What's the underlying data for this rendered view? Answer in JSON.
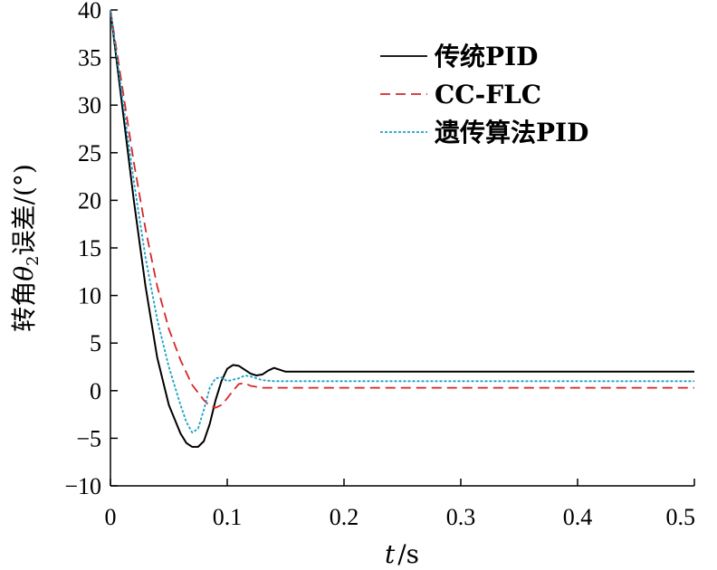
{
  "chart_data": {
    "type": "line",
    "title": "",
    "xlabel_var": "t",
    "xlabel_unit": "/s",
    "ylabel_pre": "转角",
    "ylabel_var": "θ",
    "ylabel_sub": "2",
    "ylabel_post": "误差/(°)",
    "xlim": [
      0,
      0.5
    ],
    "ylim": [
      -10,
      40
    ],
    "x_ticks": [
      0,
      0.1,
      0.2,
      0.3,
      0.4,
      0.5
    ],
    "x_tick_labels": [
      "0",
      "0.1",
      "0.2",
      "0.3",
      "0.4",
      "0.5"
    ],
    "y_ticks": [
      -10,
      -5,
      0,
      5,
      10,
      15,
      20,
      25,
      30,
      35,
      40
    ],
    "y_tick_labels": [
      "−10",
      "−5",
      "0",
      "5",
      "10",
      "15",
      "20",
      "25",
      "30",
      "35",
      "40"
    ],
    "grid": false,
    "legend_position": "top-right",
    "series": [
      {
        "name": "传统PID",
        "color": "#000000",
        "dash": "solid",
        "x": [
          0,
          0.01,
          0.02,
          0.03,
          0.04,
          0.05,
          0.06,
          0.065,
          0.07,
          0.075,
          0.08,
          0.085,
          0.09,
          0.095,
          0.1,
          0.105,
          0.11,
          0.115,
          0.12,
          0.125,
          0.13,
          0.135,
          0.14,
          0.145,
          0.15,
          0.155,
          0.16,
          0.2,
          0.3,
          0.4,
          0.5
        ],
        "y": [
          40,
          30,
          20,
          11,
          3.5,
          -1.5,
          -4.5,
          -5.5,
          -5.9,
          -5.9,
          -5.3,
          -3.5,
          -1,
          1,
          2.3,
          2.7,
          2.6,
          2.2,
          1.8,
          1.6,
          1.7,
          2.1,
          2.4,
          2.2,
          2.0,
          2.0,
          2.0,
          2.0,
          2.0,
          2.0,
          2.0
        ]
      },
      {
        "name": "CC-FLC",
        "color": "#d62728",
        "dash": "dashed",
        "x": [
          0,
          0.01,
          0.02,
          0.03,
          0.04,
          0.05,
          0.06,
          0.07,
          0.08,
          0.085,
          0.09,
          0.095,
          0.1,
          0.105,
          0.11,
          0.115,
          0.12,
          0.13,
          0.2,
          0.3,
          0.35,
          0.4,
          0.5
        ],
        "y": [
          40,
          32,
          24,
          17,
          11,
          6.5,
          3.2,
          0.6,
          -1.0,
          -1.6,
          -1.8,
          -1.5,
          -0.8,
          0.0,
          0.7,
          0.8,
          0.5,
          0.3,
          0.3,
          0.3,
          0.3,
          0.3,
          0.3
        ]
      },
      {
        "name": "遗传算法PID",
        "color": "#17a2c8",
        "dash": "dotted",
        "x": [
          0,
          0.01,
          0.02,
          0.03,
          0.04,
          0.05,
          0.06,
          0.065,
          0.07,
          0.075,
          0.08,
          0.085,
          0.09,
          0.095,
          0.1,
          0.11,
          0.115,
          0.12,
          0.13,
          0.14,
          0.2,
          0.3,
          0.4,
          0.5
        ],
        "y": [
          40,
          31,
          22,
          14,
          7.5,
          2.5,
          -1.5,
          -3.3,
          -4.4,
          -4.0,
          -2.0,
          0.3,
          1.3,
          1.4,
          1.0,
          1.3,
          1.6,
          1.5,
          1.1,
          1.0,
          1.0,
          1.0,
          1.0,
          1.0
        ]
      }
    ]
  }
}
